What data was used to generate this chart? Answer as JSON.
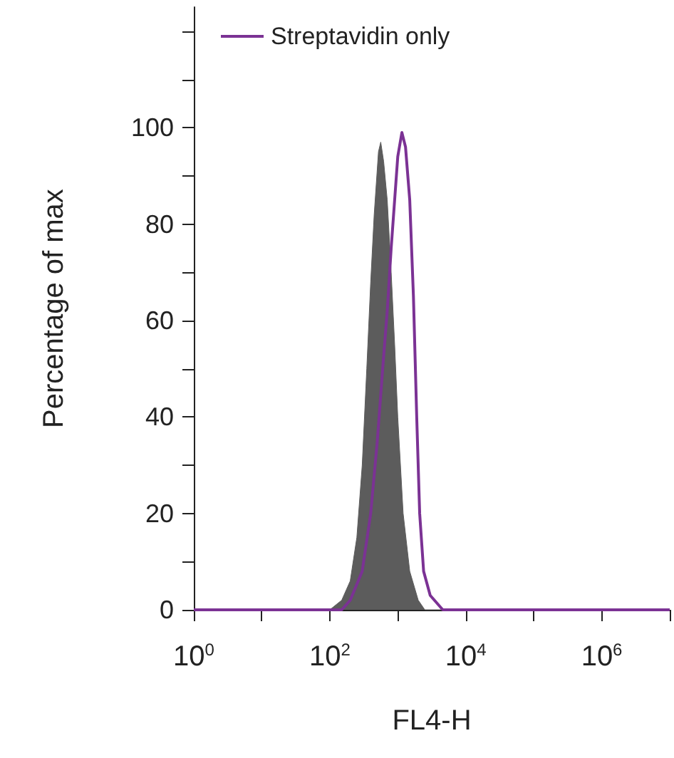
{
  "chart_data": {
    "type": "area",
    "xlabel": "FL4-H",
    "ylabel": "Percentage of max",
    "log": "x",
    "legend": "top left",
    "grid": false,
    "xlim": [
      1,
      10000000
    ],
    "xticks": [
      {
        "value": 1,
        "label": "10$^{0}$"
      },
      {
        "value": 10,
        "label": null
      },
      {
        "value": 100,
        "label": "10$^{2}$"
      },
      {
        "value": 1000,
        "label": null
      },
      {
        "value": 10000,
        "label": "10$^{4}$"
      },
      {
        "value": 100000,
        "label": null
      },
      {
        "value": 1000000,
        "label": "10$^{6}$"
      },
      {
        "value": 10000000,
        "label": null
      }
    ],
    "ylim": [
      0,
      125
    ],
    "yticks": [
      0,
      {
        "value": 10,
        "label": null
      },
      20,
      {
        "value": 30,
        "label": null
      },
      40,
      {
        "value": 50,
        "label": null
      },
      60,
      {
        "value": 70,
        "label": null
      },
      80,
      {
        "value": 90,
        "label": null
      },
      100,
      {
        "value": 110,
        "label": null
      },
      {
        "value": 120,
        "label": null
      }
    ],
    "series": [
      {
        "color": "#5c5c5c",
        "x": [
          1,
          100,
          150,
          200,
          250,
          300,
          350,
          400,
          450,
          520,
          562,
          620,
          700,
          800,
          900,
          1000,
          1200,
          1500,
          2000,
          2500,
          10000000
        ],
        "values": [
          0,
          0,
          2,
          6,
          15,
          30,
          50,
          68,
          82,
          95,
          97,
          93,
          85,
          70,
          55,
          40,
          20,
          8,
          2,
          0,
          0
        ]
      },
      {
        "type": "line",
        "name": "Streptavidin only",
        "color": "#7b3294",
        "x": [
          1,
          150,
          200,
          300,
          400,
          500,
          600,
          700,
          800,
          900,
          1000,
          1150,
          1300,
          1500,
          1700,
          1900,
          2100,
          2400,
          3000,
          4600,
          10000000
        ],
        "values": [
          0,
          0,
          2,
          8,
          20,
          35,
          50,
          62,
          75,
          85,
          94,
          99,
          96,
          85,
          65,
          40,
          20,
          8,
          3,
          0,
          0
        ]
      }
    ]
  }
}
